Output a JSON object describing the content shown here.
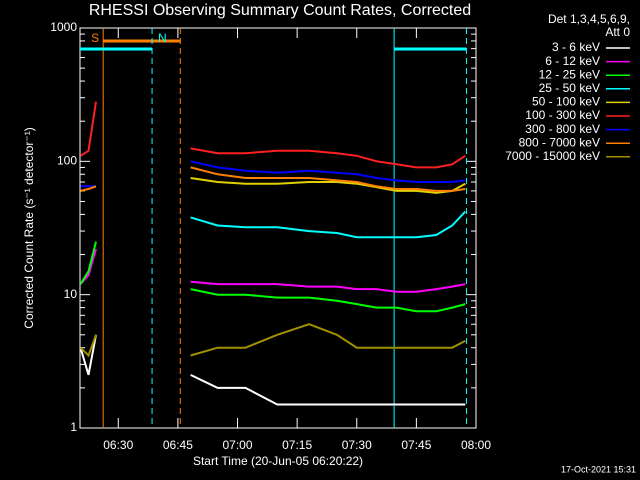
{
  "chart_data": {
    "type": "line",
    "title": "RHESSI Observing Summary Count Rates, Corrected",
    "ylabel": "Corrected Count Rate (s⁻¹ detector⁻¹)",
    "xlabel": "Start Time (20-Jun-05 06:20:22)",
    "legend_header": [
      "Det 1,3,4,5,6,9,",
      "Att 0"
    ],
    "timestamp": "17-Oct-2021 15:31",
    "log_y": true,
    "xlim": [
      20.37,
      120
    ],
    "ylim": [
      1,
      1000
    ],
    "xticks": [
      {
        "value": 30,
        "label": "06:30"
      },
      {
        "value": 45,
        "label": "06:45"
      },
      {
        "value": 60,
        "label": "07:00"
      },
      {
        "value": 75,
        "label": "07:15"
      },
      {
        "value": 90,
        "label": "07:30"
      },
      {
        "value": 105,
        "label": "07:45"
      },
      {
        "value": 120,
        "label": "08:00"
      }
    ],
    "yticks": [
      1,
      10,
      100,
      1000
    ],
    "flags": [
      {
        "label": "S",
        "color": "#ff8000",
        "intervals": [
          [
            26.2,
            45.6
          ]
        ]
      },
      {
        "label": "N",
        "color": "#00ffff",
        "intervals": [
          [
            20.37,
            38.5
          ],
          [
            99.4,
            117.6
          ]
        ]
      }
    ],
    "x": [
      20.5,
      22.5,
      24.4,
      36,
      48.2,
      55,
      62,
      70,
      78,
      85,
      90,
      95,
      100,
      105,
      110,
      114,
      117.3
    ],
    "series": [
      {
        "name": "3 - 6 keV",
        "color": "#ffffff",
        "values": [
          4,
          2.5,
          5,
          null,
          2.5,
          2,
          2,
          1.5,
          1.5,
          1.5,
          1.5,
          1.5,
          1.5,
          1.5,
          1.5,
          1.5,
          1.5
        ]
      },
      {
        "name": "6 - 12 keV",
        "color": "#ff00ff",
        "values": [
          12,
          14,
          22,
          null,
          12.5,
          12,
          12,
          12,
          11.5,
          11.5,
          11,
          11,
          10.5,
          10.5,
          11,
          11.5,
          12
        ]
      },
      {
        "name": "12 - 25 keV",
        "color": "#00ff00",
        "values": [
          12,
          15,
          25,
          null,
          11,
          10,
          10,
          9.5,
          9.5,
          9,
          8.5,
          8,
          8,
          7.5,
          7.5,
          8,
          8.5
        ]
      },
      {
        "name": "25 - 50 keV",
        "color": "#00ffff",
        "values": [
          null,
          null,
          null,
          null,
          38,
          33,
          32,
          32,
          30,
          29,
          27,
          27,
          27,
          27,
          28,
          33,
          42
        ]
      },
      {
        "name": "50 - 100 keV",
        "color": "#e0d000",
        "values": [
          null,
          null,
          null,
          null,
          75,
          70,
          68,
          68,
          70,
          70,
          68,
          64,
          60,
          60,
          58,
          60,
          68
        ]
      },
      {
        "name": "100 - 300 keV",
        "color": "#ff2020",
        "values": [
          110,
          120,
          280,
          null,
          125,
          115,
          115,
          120,
          120,
          115,
          110,
          100,
          95,
          90,
          90,
          95,
          110
        ]
      },
      {
        "name": "300 - 800 keV",
        "color": "#0000ff",
        "values": [
          65,
          65,
          65,
          null,
          100,
          90,
          85,
          82,
          85,
          82,
          80,
          75,
          72,
          70,
          70,
          70,
          72
        ]
      },
      {
        "name": "800 - 7000 keV",
        "color": "#ff8000",
        "values": [
          60,
          62,
          65,
          null,
          90,
          80,
          75,
          75,
          75,
          72,
          70,
          65,
          62,
          62,
          60,
          60,
          62
        ]
      },
      {
        "name": "7000 - 15000 keV",
        "color": "#a09000",
        "values": [
          4,
          3.5,
          5,
          null,
          3.5,
          4,
          4,
          5,
          6,
          5,
          4,
          4,
          4,
          4,
          4,
          4,
          4.5
        ]
      }
    ]
  }
}
